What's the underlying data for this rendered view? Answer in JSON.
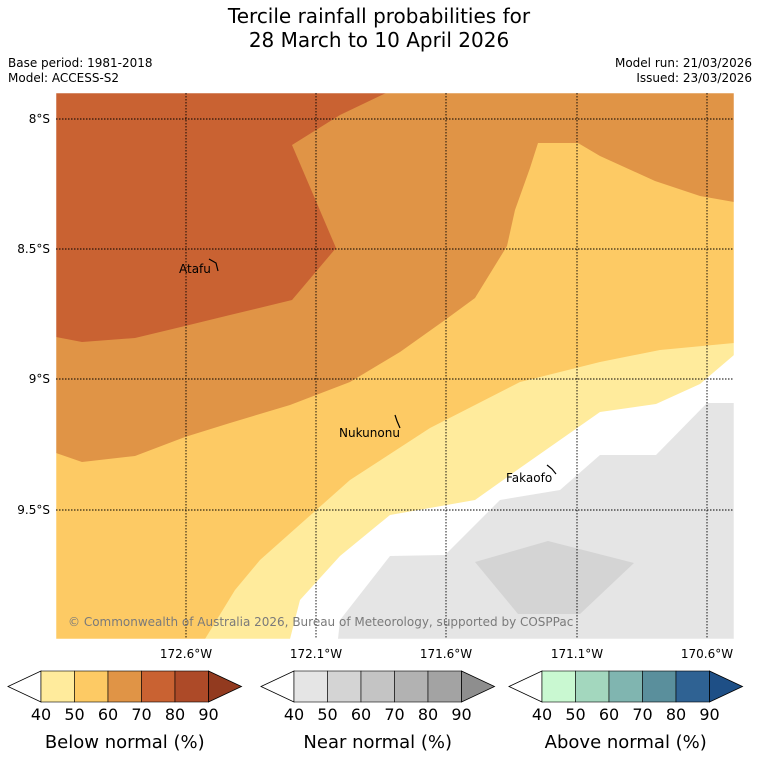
{
  "title": {
    "line1": "Tercile rainfall probabilities for",
    "line2": "28 March to 10 April 2026"
  },
  "meta": {
    "base_period": "Base period: 1981-2018",
    "model": "Model: ACCESS-S2",
    "model_run": "Model run: 21/03/2026",
    "issued": "Issued: 23/03/2026"
  },
  "map": {
    "lat_labels": [
      "8°S",
      "8.5°S",
      "9°S",
      "9.5°S"
    ],
    "lon_labels": [
      "172.6°W",
      "172.1°W",
      "171.6°W",
      "171.1°W",
      "170.6°W"
    ],
    "places": [
      "Atafu",
      "Nukunonu",
      "Fakaofo"
    ],
    "copyright": "© Commonwealth of Australia 2026, Bureau of Meteorology, supported by COSPPac"
  },
  "legends": [
    {
      "label": "Below normal (%)",
      "ticks": [
        "40",
        "50",
        "60",
        "70",
        "80",
        "90"
      ],
      "colors": [
        "#ffffff",
        "#ffeb9c",
        "#fdca64",
        "#e09446",
        "#c96232",
        "#ad4a28",
        "#923a1f"
      ]
    },
    {
      "label": "Near normal (%)",
      "ticks": [
        "40",
        "50",
        "60",
        "70",
        "80",
        "90"
      ],
      "colors": [
        "#ffffff",
        "#e5e5e5",
        "#d4d4d4",
        "#c4c4c4",
        "#b2b2b2",
        "#a3a3a3",
        "#8e8e8e"
      ]
    },
    {
      "label": "Above normal (%)",
      "ticks": [
        "40",
        "50",
        "60",
        "70",
        "80",
        "90"
      ],
      "colors": [
        "#ffffff",
        "#c9f8d1",
        "#a3d7be",
        "#80b5b0",
        "#5a8f9c",
        "#2f6293",
        "#1e4f86"
      ]
    }
  ],
  "colors": {
    "below_40": "#ffeb9c",
    "below_50": "#fdca64",
    "below_60": "#e09446",
    "below_70": "#c96232",
    "near_40": "#e5e5e5",
    "near_50": "#d4d4d4"
  }
}
